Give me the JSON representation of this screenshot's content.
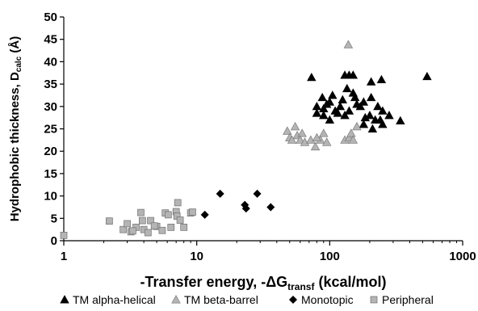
{
  "chart_data": {
    "type": "scatter",
    "x_scale": "log",
    "xlim": [
      1,
      1000
    ],
    "ylim": [
      0,
      50
    ],
    "x_ticks": [
      "1",
      "10",
      "100",
      "1000"
    ],
    "y_ticks": [
      "0",
      "5",
      "10",
      "15",
      "20",
      "25",
      "30",
      "35",
      "40",
      "45",
      "50"
    ],
    "xlabel": {
      "main": "-Transfer energy, -ΔG",
      "sub": "transf",
      "unit": " (kcal/mol)"
    },
    "ylabel": {
      "main": "Hydrophobic thickness, D",
      "sub": "calc",
      "unit": " (Å)"
    },
    "grid": false,
    "legend_position": "bottom",
    "series": [
      {
        "name": "TM alpha-helical",
        "legend_symbol": "▲",
        "marker": "triangle",
        "color": "#000000",
        "points": [
          [
            73,
            36.5
          ],
          [
            540,
            36.7
          ],
          [
            130,
            37
          ],
          [
            140,
            37
          ],
          [
            150,
            37
          ],
          [
            245,
            36
          ],
          [
            205,
            35.5
          ],
          [
            135,
            34
          ],
          [
            150,
            33
          ],
          [
            88,
            32
          ],
          [
            205,
            32
          ],
          [
            155,
            32
          ],
          [
            180,
            31
          ],
          [
            100,
            31
          ],
          [
            120,
            30
          ],
          [
            80,
            30
          ],
          [
            90,
            29.5
          ],
          [
            170,
            30
          ],
          [
            230,
            30
          ],
          [
            250,
            29
          ],
          [
            110,
            29
          ],
          [
            140,
            29
          ],
          [
            80,
            28.5
          ],
          [
            200,
            28
          ],
          [
            130,
            28
          ],
          [
            280,
            28
          ],
          [
            100,
            27
          ],
          [
            220,
            27
          ],
          [
            340,
            26.8
          ],
          [
            250,
            26
          ],
          [
            180,
            26
          ],
          [
            210,
            25
          ],
          [
            90,
            28
          ],
          [
            95,
            30.5
          ],
          [
            160,
            30.5
          ],
          [
            125,
            31.5
          ],
          [
            105,
            32.5
          ],
          [
            115,
            28.5
          ],
          [
            185,
            27.5
          ],
          [
            240,
            27
          ]
        ]
      },
      {
        "name": "TM beta-barrel",
        "legend_symbol": "▲",
        "marker": "triangle",
        "color": "#b4b4b4",
        "points": [
          [
            138,
            43.8
          ],
          [
            48,
            24.5
          ],
          [
            55,
            25.5
          ],
          [
            57,
            23.5
          ],
          [
            62,
            24
          ],
          [
            50,
            23
          ],
          [
            52,
            22.5
          ],
          [
            60,
            22.5
          ],
          [
            65,
            22
          ],
          [
            72,
            22.5
          ],
          [
            78,
            21
          ],
          [
            85,
            22.5
          ],
          [
            90,
            24
          ],
          [
            95,
            22
          ],
          [
            130,
            22.5
          ],
          [
            140,
            23
          ],
          [
            145,
            24
          ],
          [
            150,
            22.5
          ],
          [
            160,
            25.5
          ],
          [
            80,
            23
          ]
        ]
      },
      {
        "name": "Monotopic",
        "legend_symbol": "◆",
        "marker": "diamond",
        "color": "#000000",
        "points": [
          [
            11.5,
            5.8
          ],
          [
            15,
            10.5
          ],
          [
            23,
            8
          ],
          [
            23.5,
            7.2
          ],
          [
            28.5,
            10.5
          ],
          [
            36,
            7.5
          ]
        ]
      },
      {
        "name": "Peripheral",
        "legend_symbol": "■",
        "marker": "square",
        "color": "#b4b4b4",
        "points": [
          [
            1,
            1.2
          ],
          [
            2.2,
            4.4
          ],
          [
            2.8,
            2.5
          ],
          [
            3,
            3.8
          ],
          [
            3.2,
            2
          ],
          [
            3.5,
            3
          ],
          [
            3.8,
            6.3
          ],
          [
            3.9,
            4.5
          ],
          [
            4,
            2.5
          ],
          [
            4.3,
            1.8
          ],
          [
            4.5,
            4.5
          ],
          [
            5,
            3.2
          ],
          [
            5.5,
            2.3
          ],
          [
            5.8,
            6.2
          ],
          [
            6.1,
            5.8
          ],
          [
            6.4,
            3
          ],
          [
            7,
            6.5
          ],
          [
            7.1,
            5.5
          ],
          [
            7.2,
            8.5
          ],
          [
            7.5,
            4.6
          ],
          [
            8,
            3
          ],
          [
            9,
            6.2
          ],
          [
            9.3,
            6.4
          ],
          [
            3.3,
            2.2
          ],
          [
            4.8,
            3.3
          ]
        ]
      }
    ]
  }
}
